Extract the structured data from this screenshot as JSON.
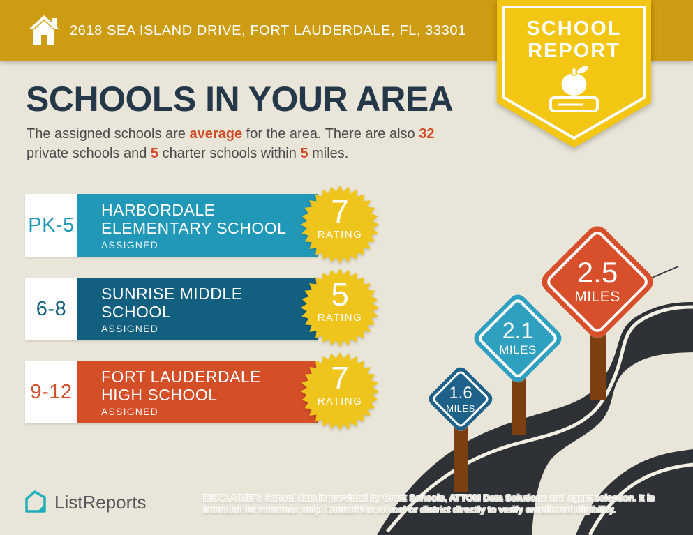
{
  "colors": {
    "gold": "#CE9C12",
    "ribbon_yellow": "#F3C614",
    "starburst_yellow": "#EFC41C",
    "navy": "#24384A",
    "accent_red": "#D14B28",
    "road_gray": "#2E3136",
    "road_line": "#F2EFE3",
    "post_brown": "#7C3F11",
    "background": "#E9E5D8",
    "brand_teal": "#1FAFBB"
  },
  "header": {
    "address": "2618 SEA ISLAND DRIVE, FORT LAUDERDALE, FL, 33301"
  },
  "ribbon": {
    "line1": "SCHOOL",
    "line2": "REPORT"
  },
  "main": {
    "title": "SCHOOLS IN YOUR AREA",
    "intro": {
      "part1": "The assigned schools are ",
      "hl1": "average",
      "part2": " for the area. There are also ",
      "hl2": "32",
      "part3": " private schools and ",
      "hl3": "5",
      "part4": " charter schools within ",
      "hl4": "5",
      "part5": " miles."
    }
  },
  "schools": [
    {
      "grades": "PK-5",
      "name_line1": "HARBORDALE",
      "name_line2": "ELEMENTARY SCHOOL",
      "status": "ASSIGNED",
      "rating": "7",
      "rating_label": "RATING",
      "color": "#2298B9"
    },
    {
      "grades": "6-8",
      "name_line1": "SUNRISE MIDDLE",
      "name_line2": "SCHOOL",
      "status": "ASSIGNED",
      "rating": "5",
      "rating_label": "RATING",
      "color": "#135F7F"
    },
    {
      "grades": "9-12",
      "name_line1": "FORT LAUDERDALE",
      "name_line2": "HIGH SCHOOL",
      "status": "ASSIGNED",
      "rating": "7",
      "rating_label": "RATING",
      "color": "#D44E28"
    }
  ],
  "signs": [
    {
      "value": "1.6",
      "unit": "MILES",
      "color": "#1E6189"
    },
    {
      "value": "2.1",
      "unit": "MILES",
      "color": "#2FA0BF"
    },
    {
      "value": "2.5",
      "unit": "MILES",
      "color": "#D8502B"
    }
  ],
  "footer": {
    "brand": "ListReports",
    "disclaimer_label": "DISCLAIMER:",
    "disclaimer_text": " School data is provided by Great Schools, ATTOM Data Solutions and agent selection. It is intended for reference only. Contact the school or district directly to verify enrollment eligibility."
  }
}
